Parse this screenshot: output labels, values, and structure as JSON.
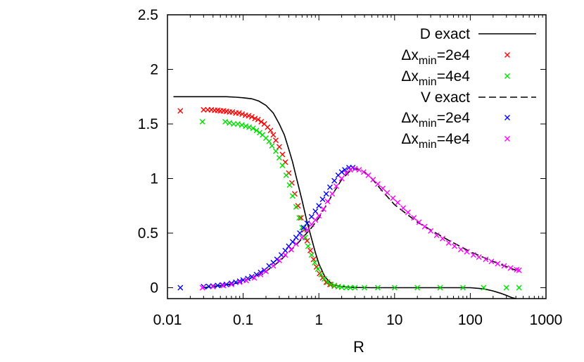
{
  "chart_data": {
    "type": "scatter",
    "title": "",
    "xlabel": "R",
    "ylabel": "",
    "xscale": "log",
    "xlim": [
      0.01,
      1000
    ],
    "ylim": [
      -0.1,
      2.5
    ],
    "xticks": [
      {
        "value": 0.01,
        "label": "0.01"
      },
      {
        "value": 0.1,
        "label": "0.1"
      },
      {
        "value": 1,
        "label": "1"
      },
      {
        "value": 10,
        "label": "10"
      },
      {
        "value": 100,
        "label": "100"
      },
      {
        "value": 1000,
        "label": "1000"
      }
    ],
    "yticks": [
      {
        "value": 0,
        "label": "0"
      },
      {
        "value": 0.5,
        "label": "0.5"
      },
      {
        "value": 1,
        "label": "1"
      },
      {
        "value": 1.5,
        "label": "1.5"
      },
      {
        "value": 2,
        "label": "2"
      },
      {
        "value": 2.5,
        "label": "2.5"
      }
    ],
    "legend_position": "top-right",
    "series": [
      {
        "name": "D exact",
        "legend": {
          "base": "D exact"
        },
        "style": "line-solid",
        "color": "#000000",
        "x": [
          0.012,
          0.02,
          0.04,
          0.06,
          0.08,
          0.1,
          0.13,
          0.16,
          0.2,
          0.25,
          0.3,
          0.35,
          0.4,
          0.45,
          0.5,
          0.6,
          0.7,
          0.8,
          0.9,
          1.0,
          1.2,
          1.5,
          2.0,
          2.5,
          3.0,
          5,
          10,
          30,
          100,
          150,
          200,
          250,
          300,
          350,
          400
        ],
        "y": [
          1.75,
          1.75,
          1.75,
          1.75,
          1.745,
          1.74,
          1.73,
          1.71,
          1.67,
          1.6,
          1.5,
          1.4,
          1.27,
          1.15,
          1.02,
          0.8,
          0.6,
          0.45,
          0.32,
          0.22,
          0.1,
          0.03,
          0.01,
          0.005,
          0.002,
          0.0,
          0.0,
          0.0,
          0.0,
          -0.01,
          -0.03,
          -0.05,
          -0.07,
          -0.09,
          -0.11
        ]
      },
      {
        "name": "D, Δx_min=2e4",
        "legend": {
          "base": "Δx",
          "sub": "min",
          "suffix": "=2e4"
        },
        "style": "marker-x",
        "color": "#ff0000",
        "x": [
          0.0148,
          0.03,
          0.034,
          0.038,
          0.042,
          0.046,
          0.05,
          0.055,
          0.06,
          0.066,
          0.072,
          0.08,
          0.088,
          0.097,
          0.107,
          0.118,
          0.13,
          0.143,
          0.157,
          0.173,
          0.19,
          0.21,
          0.23,
          0.25,
          0.27,
          0.3,
          0.33,
          0.36,
          0.4,
          0.44,
          0.48,
          0.53,
          0.58,
          0.64,
          0.7,
          0.77,
          0.85,
          0.93,
          1.02,
          1.12,
          1.25,
          1.4,
          1.6,
          1.8
        ],
        "y": [
          1.62,
          1.63,
          1.63,
          1.63,
          1.625,
          1.625,
          1.62,
          1.62,
          1.615,
          1.61,
          1.61,
          1.6,
          1.6,
          1.59,
          1.58,
          1.575,
          1.565,
          1.55,
          1.54,
          1.52,
          1.5,
          1.47,
          1.44,
          1.4,
          1.35,
          1.29,
          1.22,
          1.15,
          1.05,
          0.96,
          0.86,
          0.75,
          0.64,
          0.53,
          0.43,
          0.34,
          0.26,
          0.19,
          0.13,
          0.09,
          0.05,
          0.03,
          0.015,
          0.01
        ]
      },
      {
        "name": "D, Δx_min=4e4",
        "legend": {
          "base": "Δx",
          "sub": "min",
          "suffix": "=4e4"
        },
        "style": "marker-x",
        "color": "#00dd00",
        "x": [
          0.029,
          0.058,
          0.066,
          0.075,
          0.085,
          0.096,
          0.108,
          0.12,
          0.135,
          0.15,
          0.165,
          0.18,
          0.2,
          0.22,
          0.24,
          0.27,
          0.3,
          0.33,
          0.37,
          0.41,
          0.45,
          0.5,
          0.55,
          0.6,
          0.66,
          0.72,
          0.8,
          0.88,
          0.97,
          1.07,
          1.18,
          1.3,
          1.45,
          1.6,
          1.8,
          2.0,
          2.3,
          2.6,
          3.0,
          4,
          6,
          10,
          20,
          40,
          80,
          150,
          300,
          440
        ],
        "y": [
          1.52,
          1.52,
          1.51,
          1.5,
          1.5,
          1.49,
          1.48,
          1.47,
          1.46,
          1.44,
          1.42,
          1.4,
          1.37,
          1.34,
          1.3,
          1.25,
          1.19,
          1.12,
          1.03,
          0.94,
          0.84,
          0.74,
          0.64,
          0.55,
          0.46,
          0.38,
          0.3,
          0.23,
          0.17,
          0.12,
          0.08,
          0.05,
          0.03,
          0.02,
          0.01,
          0.005,
          0.0,
          0.0,
          0.0,
          0.0,
          0.0,
          0.0,
          0.0,
          0.0,
          0.0,
          0.0,
          0.0,
          0.0
        ]
      },
      {
        "name": "V exact",
        "legend": {
          "base": "V  exact"
        },
        "style": "line-dashed",
        "color": "#000000",
        "x": [
          0.03,
          0.05,
          0.08,
          0.12,
          0.2,
          0.3,
          0.5,
          0.8,
          1.0,
          1.5,
          2.0,
          2.5,
          3.0,
          3.5,
          4.0,
          5,
          7,
          10,
          20,
          50,
          100,
          200,
          400
        ],
        "y": [
          0.0,
          0.02,
          0.04,
          0.08,
          0.15,
          0.24,
          0.39,
          0.55,
          0.64,
          0.85,
          0.99,
          1.06,
          1.09,
          1.08,
          1.06,
          1.0,
          0.88,
          0.76,
          0.6,
          0.44,
          0.33,
          0.24,
          0.16
        ]
      },
      {
        "name": "V, Δx_min=2e4",
        "legend": {
          "base": "Δx",
          "sub": "min",
          "suffix": "=2e4"
        },
        "style": "marker-x",
        "color": "#0000ff",
        "x": [
          0.0148,
          0.03,
          0.035,
          0.04,
          0.046,
          0.053,
          0.06,
          0.07,
          0.08,
          0.09,
          0.1,
          0.115,
          0.13,
          0.15,
          0.17,
          0.19,
          0.22,
          0.25,
          0.28,
          0.32,
          0.36,
          0.4,
          0.45,
          0.5,
          0.56,
          0.63,
          0.7,
          0.8,
          0.9,
          1.0,
          1.12,
          1.25,
          1.4,
          1.6,
          1.8,
          2.0,
          2.2,
          2.5,
          2.8
        ],
        "y": [
          0.0,
          0.01,
          0.012,
          0.015,
          0.02,
          0.025,
          0.03,
          0.04,
          0.05,
          0.06,
          0.07,
          0.085,
          0.1,
          0.12,
          0.14,
          0.16,
          0.2,
          0.23,
          0.26,
          0.3,
          0.34,
          0.38,
          0.42,
          0.46,
          0.5,
          0.55,
          0.59,
          0.65,
          0.7,
          0.75,
          0.81,
          0.86,
          0.92,
          0.98,
          1.03,
          1.06,
          1.08,
          1.1,
          1.1
        ]
      },
      {
        "name": "V, Δx_min=4e4",
        "legend": {
          "base": "Δx",
          "sub": "min",
          "suffix": "=4e4"
        },
        "style": "marker-x",
        "color": "#ff00ff",
        "x": [
          0.029,
          0.04,
          0.055,
          0.07,
          0.09,
          0.11,
          0.14,
          0.17,
          0.2,
          0.25,
          0.3,
          0.36,
          0.43,
          0.5,
          0.6,
          0.7,
          0.8,
          0.9,
          1.0,
          1.15,
          1.3,
          1.5,
          1.7,
          2.0,
          2.3,
          2.6,
          3.0,
          3.4,
          3.9,
          4.5,
          5.2,
          6,
          7,
          8,
          9.5,
          11,
          13,
          15,
          18,
          21,
          25,
          30,
          36,
          43,
          52,
          62,
          75,
          90,
          110,
          130,
          160,
          190,
          230,
          280,
          340,
          410,
          440
        ],
        "y": [
          0.0,
          0.01,
          0.02,
          0.03,
          0.05,
          0.065,
          0.09,
          0.12,
          0.15,
          0.2,
          0.25,
          0.3,
          0.35,
          0.4,
          0.46,
          0.53,
          0.58,
          0.62,
          0.66,
          0.72,
          0.79,
          0.86,
          0.93,
          1.0,
          1.05,
          1.08,
          1.09,
          1.08,
          1.06,
          1.03,
          0.99,
          0.95,
          0.91,
          0.87,
          0.82,
          0.78,
          0.73,
          0.69,
          0.64,
          0.6,
          0.56,
          0.52,
          0.48,
          0.45,
          0.41,
          0.38,
          0.35,
          0.33,
          0.3,
          0.28,
          0.26,
          0.24,
          0.22,
          0.2,
          0.18,
          0.165,
          0.16
        ]
      }
    ]
  }
}
